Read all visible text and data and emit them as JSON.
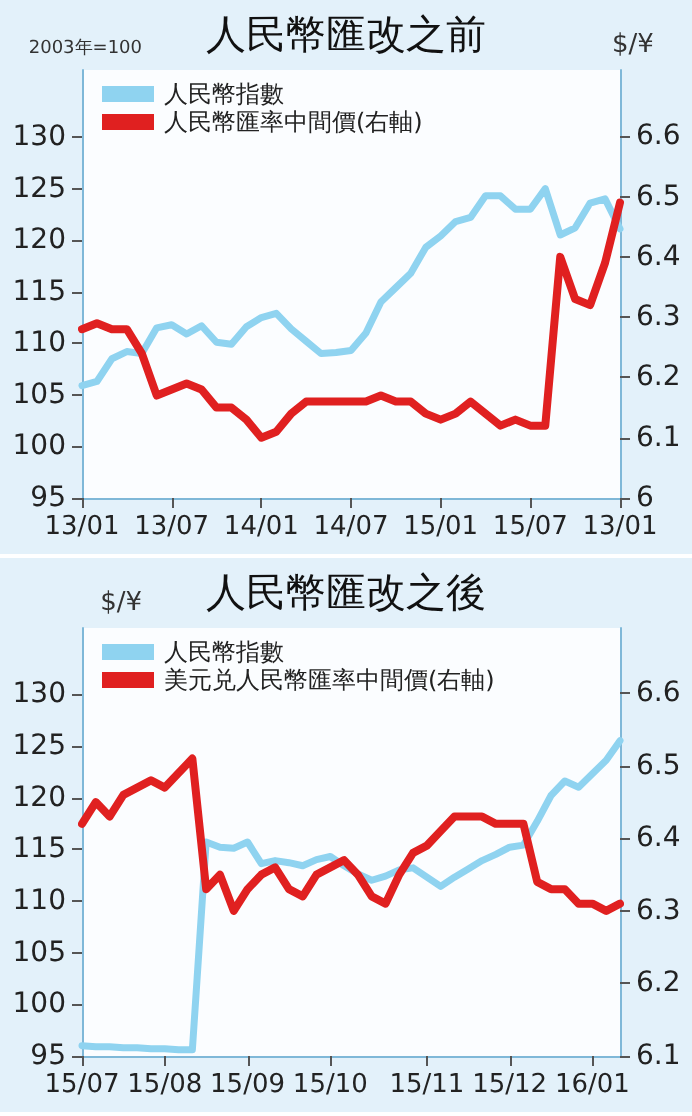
{
  "chart_data": [
    {
      "type": "line",
      "title": "人民幣匯改之前",
      "ylabel": "2003年=100",
      "y2label": "$/¥",
      "legend": "top left",
      "marker": "none",
      "line_style": "solid",
      "grid": false,
      "categories": [
        "13/01",
        null,
        null,
        null,
        null,
        null,
        "13/07",
        null,
        null,
        null,
        null,
        null,
        "14/01",
        null,
        null,
        null,
        null,
        null,
        "14/07",
        null,
        null,
        null,
        null,
        null,
        "15/01",
        null,
        null,
        null,
        null,
        null,
        "15/07",
        null,
        null,
        null,
        null,
        null,
        "13/01"
      ],
      "ylim": [
        95,
        136.5
      ],
      "yticks": [
        95,
        100,
        105,
        110,
        115,
        120,
        125,
        130
      ],
      "y2lim": [
        6,
        6.71
      ],
      "y2ticks": [
        6,
        6.1,
        6.2,
        6.3,
        6.4,
        6.5,
        6.6
      ],
      "series": [
        {
          "name": "人民幣指數",
          "color": "#8fd3f0",
          "values": [
            105.9,
            106.3,
            108.5,
            109.2,
            109,
            111.5,
            111.8,
            110.9,
            111.7,
            110.1,
            109.9,
            111.6,
            112.5,
            112.9,
            111.4,
            110.2,
            109,
            109.1,
            109.3,
            111,
            114,
            115.4,
            116.8,
            119.3,
            120.4,
            121.8,
            122.2,
            124.3,
            124.3,
            123,
            123,
            125,
            120.5,
            121.2,
            123.6,
            124,
            121.1
          ]
        },
        {
          "name": "人民幣匯率中間價(右軸)",
          "color": "#e02020",
          "axis": "y2",
          "values": [
            6.28,
            6.29,
            6.28,
            6.28,
            6.24,
            6.17,
            6.18,
            6.19,
            6.18,
            6.15,
            6.15,
            6.13,
            6.1,
            6.11,
            6.14,
            6.16,
            6.16,
            6.16,
            6.16,
            6.16,
            6.17,
            6.16,
            6.16,
            6.14,
            6.13,
            6.14,
            6.16,
            6.14,
            6.12,
            6.13,
            6.12,
            6.12,
            6.4,
            6.33,
            6.32,
            6.39,
            6.49
          ]
        }
      ]
    },
    {
      "type": "line",
      "title": "人民幣匯改之後",
      "ylabel": "$/¥",
      "legend": "top left",
      "marker": "none",
      "line_style": "solid",
      "grid": false,
      "categories": [
        "15/07",
        null,
        null,
        null,
        null,
        null,
        "15/08",
        null,
        null,
        null,
        null,
        null,
        "15/09",
        null,
        null,
        null,
        null,
        null,
        "15/10",
        null,
        null,
        null,
        null,
        null,
        null,
        "15/11",
        null,
        null,
        null,
        null,
        null,
        "15/12",
        null,
        null,
        null,
        null,
        null,
        "16/01",
        null,
        null
      ],
      "ylim": [
        95,
        136.4
      ],
      "yticks": [
        95,
        100,
        105,
        110,
        115,
        120,
        125,
        130
      ],
      "y2lim": [
        6.1,
        6.69
      ],
      "y2ticks": [
        6.1,
        6.2,
        6.3,
        6.4,
        6.5,
        6.6
      ],
      "series": [
        {
          "name": "人民幣指數",
          "color": "#8fd3f0",
          "values": [
            96,
            95.9,
            95.9,
            95.8,
            95.8,
            95.7,
            95.7,
            95.6,
            95.6,
            115.7,
            115.2,
            115.1,
            115.7,
            113.6,
            113.9,
            113.7,
            113.4,
            114,
            114.3,
            113.4,
            112.6,
            112,
            112.4,
            113,
            113.2,
            112.3,
            111.4,
            112.3,
            113.1,
            113.9,
            114.5,
            115.2,
            115.4,
            117.7,
            120.2,
            121.6,
            121,
            122.3,
            123.6,
            125.5
          ]
        },
        {
          "name": "美元兑人民幣匯率中間價(右軸)",
          "color": "#e02020",
          "axis": "y2",
          "values": [
            6.42,
            6.45,
            6.43,
            6.46,
            6.47,
            6.48,
            6.47,
            6.49,
            6.51,
            6.33,
            6.35,
            6.3,
            6.33,
            6.35,
            6.36,
            6.33,
            6.32,
            6.35,
            6.36,
            6.37,
            6.35,
            6.32,
            6.31,
            6.35,
            6.38,
            6.39,
            6.41,
            6.43,
            6.43,
            6.43,
            6.42,
            6.42,
            6.42,
            6.34,
            6.33,
            6.33,
            6.31,
            6.31,
            6.3,
            6.31
          ]
        }
      ]
    }
  ]
}
